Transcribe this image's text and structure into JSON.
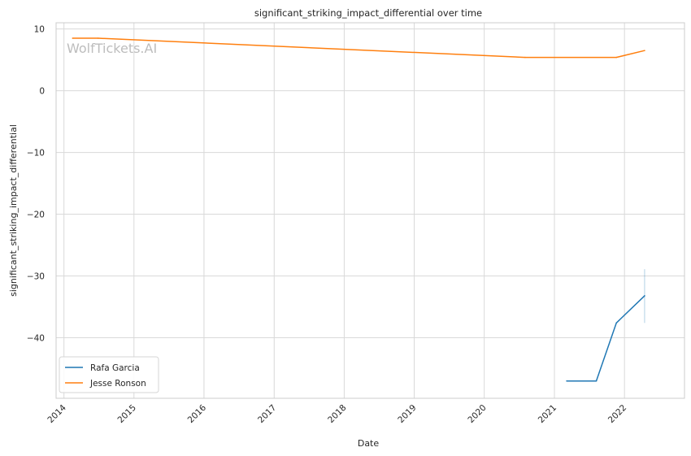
{
  "chart_data": {
    "type": "line",
    "title": "significant_striking_impact_differential over time",
    "xlabel": "Date",
    "ylabel": "significant_striking_impact_differential",
    "watermark": "WolfTickets.AI",
    "xlim": [
      "2013-11-21",
      "2022-11-10"
    ],
    "ylim": [
      -49.8,
      11
    ],
    "x_ticks": [
      "2014",
      "2015",
      "2016",
      "2017",
      "2018",
      "2019",
      "2020",
      "2021",
      "2022"
    ],
    "y_ticks": [
      10,
      0,
      -10,
      -20,
      -30,
      -40
    ],
    "y_tick_labels": [
      "10",
      "0",
      "−10",
      "−20",
      "−30",
      "−40"
    ],
    "grid": true,
    "legend_position": "bottom-left",
    "series": [
      {
        "name": "Rafa Garcia",
        "color": "#1f77b4",
        "points": [
          {
            "x": "2021-03-06",
            "y": -47
          },
          {
            "x": "2021-08-07",
            "y": -47
          },
          {
            "x": "2021-11-20",
            "y": -37.6
          },
          {
            "x": "2022-04-16",
            "y": -33.2
          }
        ],
        "error_bar": {
          "x": "2022-04-16",
          "low": -37.6,
          "high": -28.9
        }
      },
      {
        "name": "Jesse Ronson",
        "color": "#ff7f0e",
        "points": [
          {
            "x": "2014-02-15",
            "y": 8.5
          },
          {
            "x": "2014-06-28",
            "y": 8.5
          },
          {
            "x": "2020-08-01",
            "y": 5.4
          },
          {
            "x": "2021-11-20",
            "y": 5.4
          },
          {
            "x": "2022-04-16",
            "y": 6.5
          }
        ]
      }
    ]
  }
}
